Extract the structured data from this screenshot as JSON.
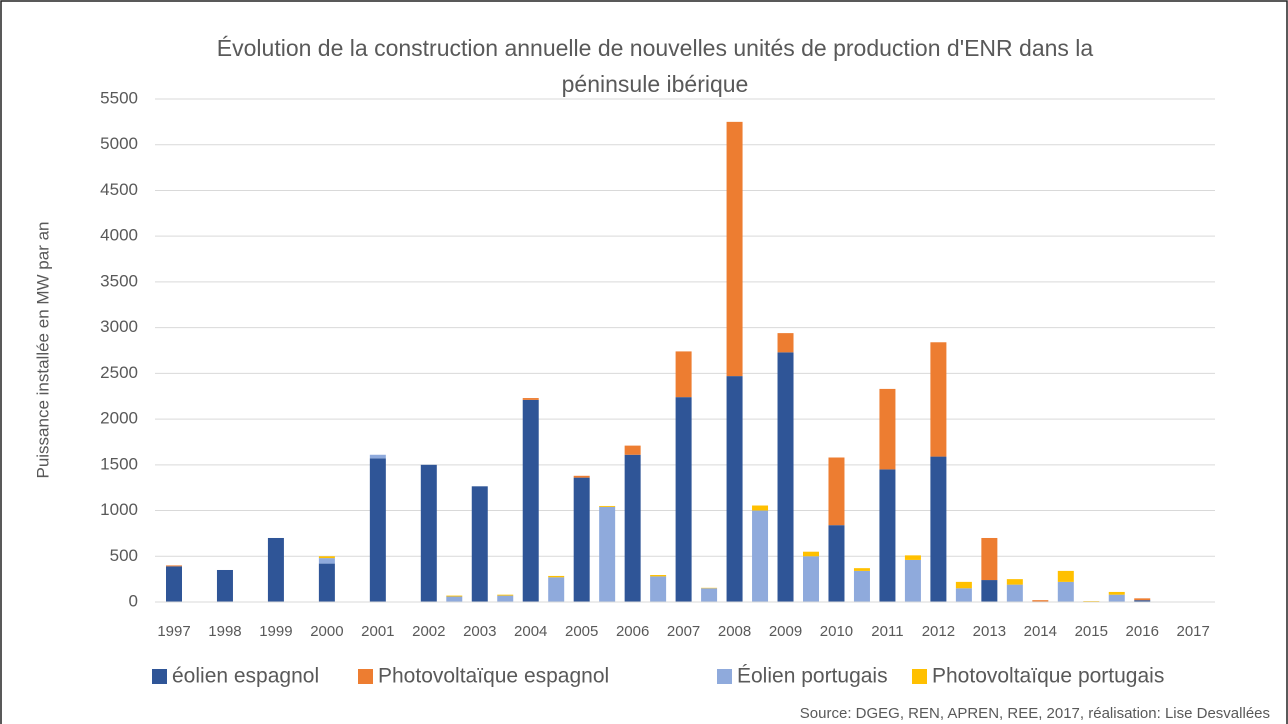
{
  "chart_data": {
    "type": "bar",
    "title": [
      "Évolution de la construction annuelle  de nouvelles unités de production d'ENR dans la",
      "péninsule ibérique"
    ],
    "y_label": "Puissance installée en MW par an",
    "source": "Source: DGEG, REN, APREN, REE, 2017, réalisation: Lise Desvallées",
    "stacked": true,
    "categories": [
      "1997",
      null,
      "1998",
      null,
      "1999",
      null,
      "2000",
      null,
      "2001",
      null,
      "2002",
      null,
      "2003",
      null,
      "2004",
      null,
      "2005",
      null,
      "2006",
      null,
      "2007",
      null,
      "2008",
      null,
      "2009",
      null,
      "2010",
      null,
      "2011",
      null,
      "2012",
      null,
      "2013",
      null,
      "2014",
      null,
      "2015",
      null,
      "2016",
      null,
      "2017",
      null
    ],
    "series": [
      {
        "name": "éolien espagnol",
        "color": "#2f5597",
        "values": [
          390,
          null,
          350,
          null,
          700,
          null,
          420,
          null,
          1570,
          null,
          1500,
          null,
          1265,
          null,
          2210,
          null,
          1360,
          null,
          1610,
          null,
          2240,
          null,
          2470,
          null,
          2730,
          null,
          840,
          null,
          1450,
          null,
          1590,
          null,
          240,
          null,
          5,
          null,
          null,
          null,
          20,
          null,
          null,
          null
        ]
      },
      {
        "name": "Photovoltaïque espagnol",
        "color": "#ed7d31",
        "values": [
          10,
          null,
          null,
          null,
          null,
          null,
          null,
          null,
          null,
          null,
          null,
          null,
          null,
          null,
          20,
          null,
          20,
          null,
          100,
          null,
          500,
          null,
          2780,
          null,
          210,
          null,
          740,
          null,
          880,
          null,
          1250,
          null,
          460,
          null,
          15,
          null,
          null,
          null,
          20,
          null,
          null,
          null
        ]
      },
      {
        "name": "Éolien portugais",
        "color": "#8faadc",
        "values": [
          null,
          null,
          null,
          null,
          null,
          null,
          60,
          null,
          40,
          null,
          null,
          60,
          null,
          70,
          null,
          270,
          null,
          1040,
          null,
          280,
          null,
          150,
          null,
          1000,
          null,
          500,
          null,
          340,
          null,
          460,
          null,
          150,
          null,
          190,
          null,
          220,
          null,
          80,
          null,
          null,
          null,
          null
        ]
      },
      {
        "name": "Photovoltaïque portugais",
        "color": "#ffc000",
        "values": [
          null,
          null,
          null,
          null,
          null,
          null,
          20,
          null,
          null,
          null,
          null,
          10,
          null,
          10,
          null,
          15,
          null,
          10,
          null,
          15,
          null,
          5,
          null,
          55,
          null,
          50,
          null,
          30,
          null,
          50,
          null,
          70,
          null,
          60,
          null,
          120,
          10,
          30,
          null,
          null,
          null,
          null
        ]
      }
    ],
    "ylim": [
      0,
      5500
    ],
    "yticks": [
      0,
      500,
      1000,
      1500,
      2000,
      2500,
      3000,
      3500,
      4000,
      4500,
      5000,
      5500
    ],
    "grid": true,
    "legend": "bottom"
  }
}
